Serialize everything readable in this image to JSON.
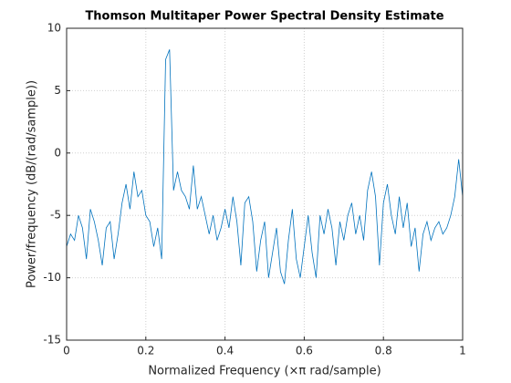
{
  "chart_data": {
    "type": "line",
    "title": "Thomson Multitaper Power Spectral Density Estimate",
    "xlabel": "Normalized Frequency  (×π rad/sample)",
    "ylabel": "Power/frequency (dB/(rad/sample))",
    "color": "#0072bd",
    "grid": true,
    "xlim": [
      0,
      1
    ],
    "xticks": [
      0,
      0.2,
      0.4,
      0.6,
      0.8,
      1
    ],
    "ylim": [
      -15,
      10
    ],
    "yticks": [
      -15,
      -10,
      -5,
      0,
      5,
      10
    ],
    "x": [
      0,
      0.01,
      0.02,
      0.03,
      0.04,
      0.05,
      0.06,
      0.07,
      0.08,
      0.09,
      0.1,
      0.11,
      0.12,
      0.13,
      0.14,
      0.15,
      0.16,
      0.17,
      0.18,
      0.19,
      0.2,
      0.21,
      0.22,
      0.23,
      0.24,
      0.25,
      0.26,
      0.27,
      0.28,
      0.29,
      0.3,
      0.31,
      0.32,
      0.33,
      0.34,
      0.35,
      0.36,
      0.37,
      0.38,
      0.39,
      0.4,
      0.41,
      0.42,
      0.43,
      0.44,
      0.45,
      0.46,
      0.47,
      0.48,
      0.49,
      0.5,
      0.51,
      0.52,
      0.53,
      0.54,
      0.55,
      0.56,
      0.57,
      0.58,
      0.59,
      0.6,
      0.61,
      0.62,
      0.63,
      0.64,
      0.65,
      0.66,
      0.67,
      0.68,
      0.69,
      0.7,
      0.71,
      0.72,
      0.73,
      0.74,
      0.75,
      0.76,
      0.77,
      0.78,
      0.79,
      0.8,
      0.81,
      0.82,
      0.83,
      0.84,
      0.85,
      0.86,
      0.87,
      0.88,
      0.89,
      0.9,
      0.91,
      0.92,
      0.93,
      0.94,
      0.95,
      0.96,
      0.97,
      0.98,
      0.99,
      1
    ],
    "values": [
      -7.5,
      -6.5,
      -7,
      -5,
      -6,
      -8.5,
      -4.5,
      -5.5,
      -7,
      -9,
      -6,
      -5.5,
      -8.5,
      -6.5,
      -4,
      -2.5,
      -4.5,
      -1.5,
      -3.5,
      -3,
      -5,
      -5.5,
      -7.5,
      -6,
      -8.5,
      7.5,
      8.3,
      -3,
      -1.5,
      -3,
      -3.5,
      -4.5,
      -1,
      -4.5,
      -3.5,
      -5,
      -6.5,
      -5,
      -7,
      -6,
      -4.5,
      -6,
      -3.5,
      -5.5,
      -9,
      -4,
      -3.5,
      -5.5,
      -9.5,
      -7,
      -5.5,
      -10,
      -8,
      -6,
      -9.5,
      -10.5,
      -7,
      -4.5,
      -8.5,
      -10,
      -7.5,
      -5,
      -8,
      -10,
      -5,
      -6.5,
      -4.5,
      -6,
      -9,
      -5.5,
      -7,
      -5,
      -4,
      -6.5,
      -5,
      -7,
      -3,
      -1.5,
      -3.5,
      -9,
      -4,
      -2.5,
      -5,
      -6.5,
      -3.5,
      -6,
      -4,
      -7.5,
      -6,
      -9.5,
      -6.5,
      -5.5,
      -7,
      -6,
      -5.5,
      -6.5,
      -6,
      -5,
      -3.5,
      -0.5,
      -3.5
    ]
  }
}
